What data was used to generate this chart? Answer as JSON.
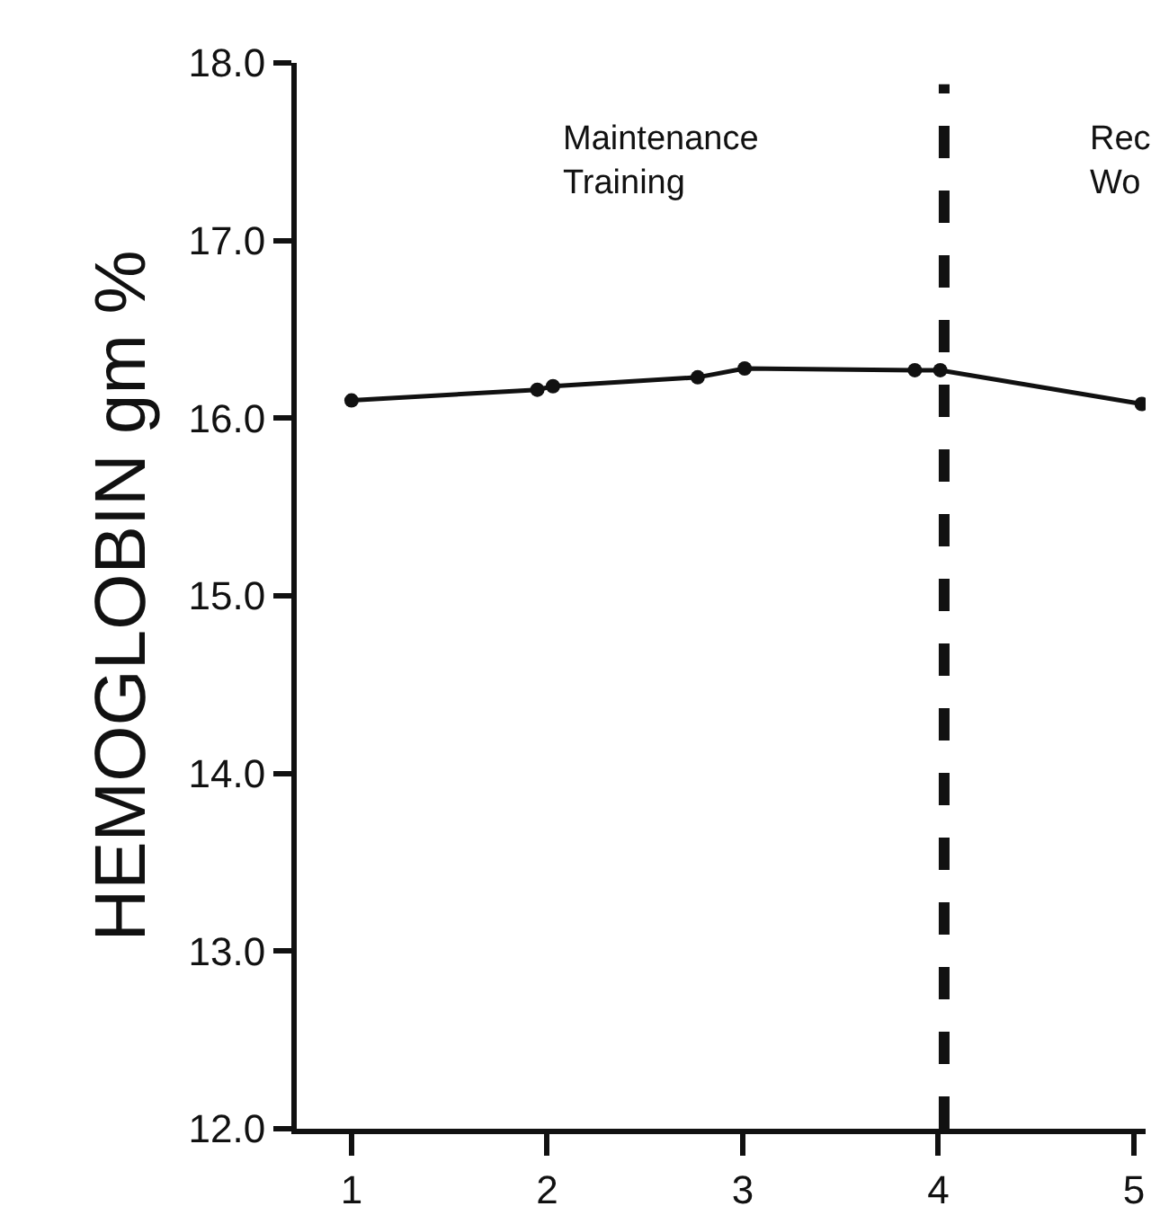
{
  "chart_data": {
    "type": "line",
    "ylabel": "HEMOGLOBIN gm %",
    "x": [
      1.0,
      1.95,
      2.03,
      2.77,
      3.01,
      3.88,
      4.01,
      5.04
    ],
    "values": [
      16.1,
      16.16,
      16.18,
      16.23,
      16.28,
      16.27,
      16.27,
      16.08
    ],
    "color": "#111111",
    "marker": "circle",
    "line_style": "solid",
    "xlim": [
      0.72,
      5.06
    ],
    "xticks": [
      1,
      2,
      3,
      4,
      5
    ],
    "ylim": [
      12,
      18
    ],
    "yticks": [
      {
        "value": 12,
        "label": "12.0"
      },
      {
        "value": 13,
        "label": "13.0"
      },
      {
        "value": 14,
        "label": "14.0"
      },
      {
        "value": 15,
        "label": "15.0"
      },
      {
        "value": 16,
        "label": "16.0"
      },
      {
        "value": 17,
        "label": "17.0"
      },
      {
        "value": 18,
        "label": "18.0"
      }
    ],
    "ref_lines": [
      {
        "axis": "x",
        "value": 4.03,
        "color": "#111111",
        "line_style": "dashed"
      }
    ],
    "annotations": [
      "Maintenance\nTraining",
      "Rec\nWo"
    ],
    "grid": false
  }
}
